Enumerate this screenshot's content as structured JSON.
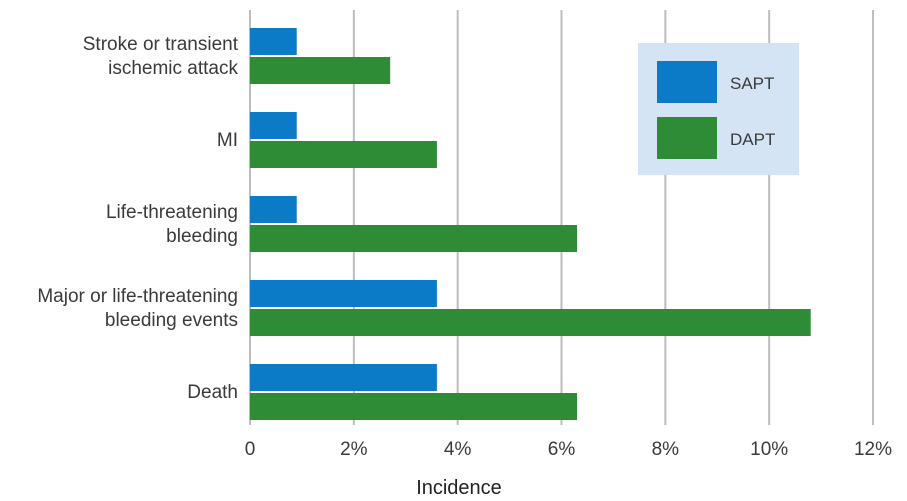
{
  "chart_data": {
    "type": "bar",
    "orientation": "horizontal",
    "categories": [
      [
        "Stroke or transient",
        "ischemic attack"
      ],
      [
        "MI"
      ],
      [
        "Life-threatening",
        "bleeding"
      ],
      [
        "Major or life-threatening",
        "bleeding events"
      ],
      [
        "Death"
      ]
    ],
    "series": [
      {
        "name": "SAPT",
        "color": "#0b7ac7",
        "values": [
          0.9,
          0.9,
          0.9,
          3.6,
          3.6
        ]
      },
      {
        "name": "DAPT",
        "color": "#2e8b36",
        "values": [
          2.7,
          3.6,
          6.3,
          10.8,
          6.3
        ]
      }
    ],
    "xlim": [
      0,
      12
    ],
    "xticks": [
      0,
      2,
      4,
      6,
      8,
      10,
      12
    ],
    "xtick_labels": [
      "0",
      "2%",
      "4%",
      "6%",
      "8%",
      "10%",
      "12%"
    ],
    "xlabel": "Incidence",
    "ylabel": "",
    "title": "",
    "grid": "vertical",
    "grid_color": "#bdbdbd",
    "legend": {
      "position": "top-right",
      "background": "#d4e4f4",
      "entries": [
        "SAPT",
        "DAPT"
      ]
    }
  }
}
